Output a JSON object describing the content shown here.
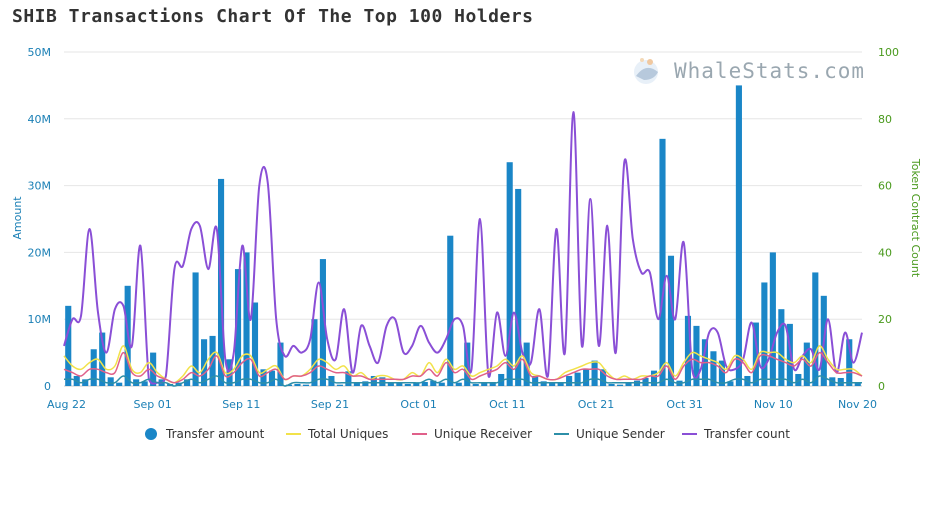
{
  "title": "SHIB Transactions Chart Of The Top 100 Holders",
  "watermark": "WhaleStats.com",
  "chart_data": {
    "type": "bar",
    "x_tick_labels": [
      "Aug 22",
      "Sep 01",
      "Sep 11",
      "Sep 21",
      "Oct 01",
      "Oct 11",
      "Oct 21",
      "Oct 31",
      "Nov 10",
      "Nov 20"
    ],
    "x_start": "Aug 22",
    "x_end": "Nov 20",
    "left_axis": {
      "label": "Amount",
      "ticks": [
        "0",
        "10M",
        "20M",
        "30M",
        "40M",
        "50M"
      ],
      "range": [
        0,
        50
      ]
    },
    "right_axis": {
      "label": "Token Contract Count",
      "ticks": [
        "0",
        "20",
        "40",
        "60",
        "80",
        "100"
      ],
      "range": [
        0,
        100
      ]
    },
    "grid": true,
    "legend_position": "bottom",
    "colors": {
      "transfer_amount": "#1a86c7",
      "total_uniques": "#f2e24a",
      "unique_receiver": "#e0608a",
      "unique_sender": "#2d8fa8",
      "transfer_count": "#8a4fd6"
    },
    "series": [
      {
        "name": "Transfer amount",
        "axis": "left",
        "unit": "M",
        "values": [
          12,
          1.5,
          1,
          5.5,
          8,
          1.3,
          0.5,
          15,
          1,
          0.7,
          5,
          1,
          0.3,
          0.5,
          1,
          17,
          7,
          7.5,
          31,
          4,
          17.5,
          20,
          12.5,
          2.5,
          2.3,
          6.5,
          0.2,
          0.3,
          0.2,
          10,
          19,
          1.5,
          0.2,
          2.2,
          0.5,
          0.7,
          1.5,
          1.3,
          0.6,
          0.5,
          0.3,
          0.5,
          0.6,
          0.8,
          0.5,
          22.5,
          0.5,
          6.5,
          0.3,
          0.5,
          0.6,
          1.8,
          33.5,
          29.5,
          6.5,
          1.5,
          0.7,
          0.5,
          0.5,
          1.5,
          2,
          2.5,
          3.8,
          2.5,
          0.3,
          0.2,
          0.5,
          0.8,
          1.2,
          2.3,
          37,
          19.5,
          0.8,
          10.5,
          9,
          7,
          5.2,
          3.8,
          0.7,
          45,
          1.5,
          9.5,
          15.5,
          20,
          11.5,
          9.3,
          1.8,
          6.5,
          17,
          13.5,
          1.3,
          1.2,
          7,
          0.5
        ]
      },
      {
        "name": "Total Uniques",
        "axis": "right",
        "values": [
          9,
          6,
          5,
          7,
          8,
          5,
          6,
          12,
          5,
          4,
          7,
          4,
          2,
          1,
          3,
          6,
          4,
          8,
          10,
          4,
          5,
          9,
          9,
          4,
          5,
          6,
          2,
          3,
          3,
          5,
          8,
          7,
          5,
          6,
          3,
          4,
          2,
          3,
          3,
          2,
          2,
          4,
          3,
          7,
          4,
          8,
          5,
          6,
          3,
          4,
          5,
          6,
          8,
          6,
          9,
          4,
          3,
          2,
          2,
          4,
          5,
          6,
          7,
          7,
          4,
          2,
          3,
          2,
          3,
          3,
          4,
          7,
          3,
          7,
          10,
          9,
          8,
          7,
          5,
          9,
          8,
          5,
          10,
          10,
          10,
          8,
          7,
          9,
          7,
          12,
          8,
          5,
          5,
          5,
          3
        ]
      },
      {
        "name": "Unique Receiver",
        "axis": "right",
        "values": [
          5,
          4,
          3,
          5,
          5,
          4,
          4,
          10,
          4,
          3,
          5,
          3,
          2,
          1,
          2,
          4,
          3,
          5,
          9,
          3,
          4,
          7,
          8,
          3,
          4,
          5,
          2,
          3,
          3,
          4,
          6,
          5,
          4,
          4,
          3,
          3,
          2,
          2,
          2,
          2,
          2,
          3,
          3,
          5,
          3,
          7,
          4,
          5,
          2,
          3,
          4,
          5,
          7,
          5,
          8,
          3,
          3,
          2,
          2,
          3,
          4,
          5,
          5,
          5,
          3,
          2,
          2,
          2,
          2,
          3,
          3,
          6,
          2,
          6,
          8,
          7,
          7,
          6,
          4,
          8,
          7,
          4,
          9,
          9,
          8,
          7,
          6,
          8,
          6,
          10,
          7,
          4,
          4,
          4,
          3
        ]
      },
      {
        "name": "Unique Sender",
        "axis": "right",
        "values": [
          2,
          2,
          1,
          2,
          2,
          1,
          1,
          3,
          1,
          1,
          2,
          1,
          1,
          0,
          1,
          2,
          1,
          2,
          3,
          1,
          1,
          2,
          2,
          1,
          1,
          2,
          0,
          1,
          1,
          1,
          2,
          2,
          1,
          1,
          1,
          1,
          1,
          1,
          1,
          1,
          1,
          1,
          1,
          2,
          1,
          2,
          1,
          2,
          1,
          1,
          1,
          1,
          2,
          2,
          2,
          1,
          1,
          1,
          1,
          1,
          1,
          1,
          2,
          2,
          1,
          1,
          1,
          1,
          1,
          1,
          1,
          2,
          1,
          1,
          2,
          2,
          2,
          1,
          1,
          2,
          2,
          1,
          2,
          2,
          2,
          2,
          1,
          2,
          1,
          3,
          2,
          1,
          1,
          1,
          1
        ]
      },
      {
        "name": "Transfer count",
        "axis": "right",
        "values": [
          12,
          20,
          21,
          47,
          22,
          10,
          23,
          24,
          12,
          42,
          2,
          1,
          3,
          35,
          36,
          47,
          48,
          35,
          47,
          8,
          10,
          42,
          20,
          60,
          61,
          20,
          9,
          12,
          10,
          14,
          31,
          14,
          8,
          23,
          4,
          18,
          12,
          7,
          18,
          20,
          10,
          12,
          18,
          13,
          10,
          14,
          20,
          18,
          5,
          50,
          3,
          22,
          9,
          22,
          10,
          7,
          23,
          3,
          47,
          10,
          82,
          12,
          56,
          12,
          48,
          10,
          67,
          44,
          34,
          34,
          20,
          33,
          20,
          43,
          5,
          5,
          16,
          16,
          6,
          5,
          8,
          19,
          6,
          8,
          16,
          18,
          5,
          9,
          11,
          5,
          20,
          4,
          16,
          7,
          16
        ]
      }
    ]
  },
  "legend": [
    {
      "label": "Transfer amount",
      "shape": "dot",
      "color": "#1a86c7"
    },
    {
      "label": "Total Uniques",
      "shape": "line",
      "color": "#f2e24a"
    },
    {
      "label": "Unique Receiver",
      "shape": "line",
      "color": "#e0608a"
    },
    {
      "label": "Unique Sender",
      "shape": "line",
      "color": "#2d8fa8"
    },
    {
      "label": "Transfer count",
      "shape": "line",
      "color": "#8a4fd6"
    }
  ]
}
